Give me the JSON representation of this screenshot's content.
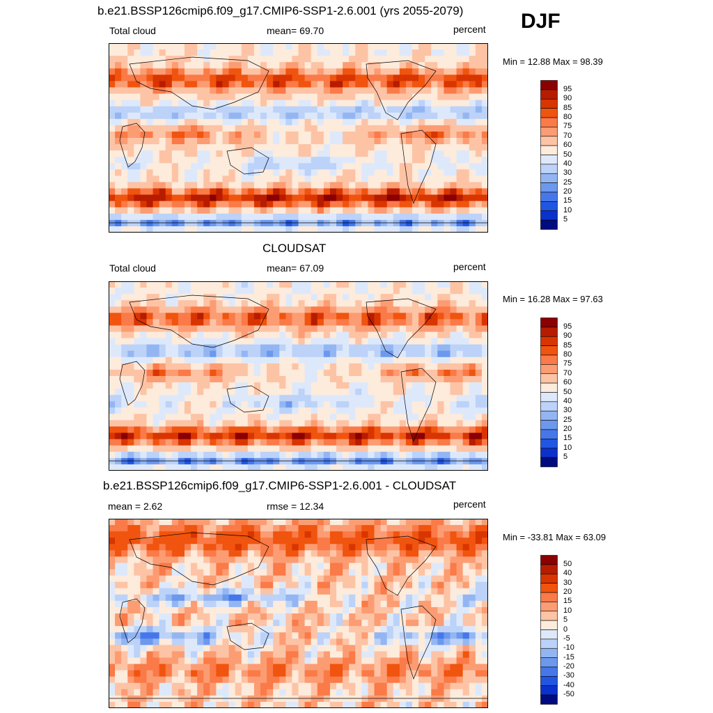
{
  "season": "DJF",
  "panels": [
    {
      "title": "b.e21.BSSP126cmip6.f09_g17.CMIP6-SSP1-2.6.001 (yrs 2055-2079)",
      "left_text": "Total cloud",
      "center_text": "mean=  69.70",
      "right_text": "percent",
      "minmax_text": "Min =  12.88 Max =  98.39",
      "kind": "model"
    },
    {
      "title": "CLOUDSAT",
      "left_text": "Total cloud",
      "center_text": "mean=  67.09",
      "right_text": "percent",
      "minmax_text": "Min =  16.28 Max =  97.63",
      "kind": "obs"
    },
    {
      "title": "b.e21.BSSP126cmip6.f09_g17.CMIP6-SSP1-2.6.001 - CLOUDSAT",
      "left_text": "mean =   2.62",
      "center_text": "rmse =  12.34",
      "right_text": "percent",
      "minmax_text": "Min = -33.81 Max =  63.09",
      "kind": "diff"
    }
  ],
  "colorbars": {
    "abs": {
      "labels": [
        "95",
        "90",
        "85",
        "80",
        "75",
        "70",
        "60",
        "50",
        "40",
        "30",
        "25",
        "20",
        "15",
        "10",
        "5"
      ],
      "colors": [
        "#8b0000",
        "#b71c00",
        "#d93500",
        "#f0540e",
        "#fa7a48",
        "#fc9c73",
        "#fdc3a5",
        "#fdebdc",
        "#dde9fb",
        "#bcd2f8",
        "#93b6f3",
        "#6c98ee",
        "#4677ea",
        "#2156e3",
        "#0a31cc",
        "#000b80"
      ]
    },
    "diff": {
      "labels": [
        "50",
        "40",
        "30",
        "20",
        "15",
        "10",
        "5",
        "0",
        "-5",
        "-10",
        "-15",
        "-20",
        "-30",
        "-40",
        "-50"
      ],
      "colors": [
        "#8b0000",
        "#b71c00",
        "#d93500",
        "#f0540e",
        "#fa7a48",
        "#fc9c73",
        "#fdc3a5",
        "#fdebdc",
        "#dde9fb",
        "#bcd2f8",
        "#93b6f3",
        "#6c98ee",
        "#4677ea",
        "#2156e3",
        "#0a31cc",
        "#000b80"
      ]
    }
  },
  "chart_data": [
    {
      "type": "heatmap",
      "title": "b.e21.BSSP126cmip6.f09_g17.CMIP6-SSP1-2.6.001 (yrs 2055-2079)",
      "variable": "Total cloud",
      "units": "percent",
      "mean": 69.7,
      "min": 12.88,
      "max": 98.39,
      "contour_levels": [
        5,
        10,
        15,
        20,
        25,
        30,
        40,
        50,
        60,
        70,
        75,
        80,
        85,
        90,
        95
      ]
    },
    {
      "type": "heatmap",
      "title": "CLOUDSAT",
      "variable": "Total cloud",
      "units": "percent",
      "mean": 67.09,
      "min": 16.28,
      "max": 97.63,
      "contour_levels": [
        5,
        10,
        15,
        20,
        25,
        30,
        40,
        50,
        60,
        70,
        75,
        80,
        85,
        90,
        95
      ]
    },
    {
      "type": "heatmap",
      "title": "b.e21.BSSP126cmip6.f09_g17.CMIP6-SSP1-2.6.001 - CLOUDSAT",
      "units": "percent",
      "mean": 2.62,
      "rmse": 12.34,
      "min": -33.81,
      "max": 63.09,
      "contour_levels": [
        -50,
        -40,
        -30,
        -20,
        -15,
        -10,
        -5,
        0,
        5,
        10,
        15,
        20,
        30,
        40,
        50
      ]
    }
  ]
}
